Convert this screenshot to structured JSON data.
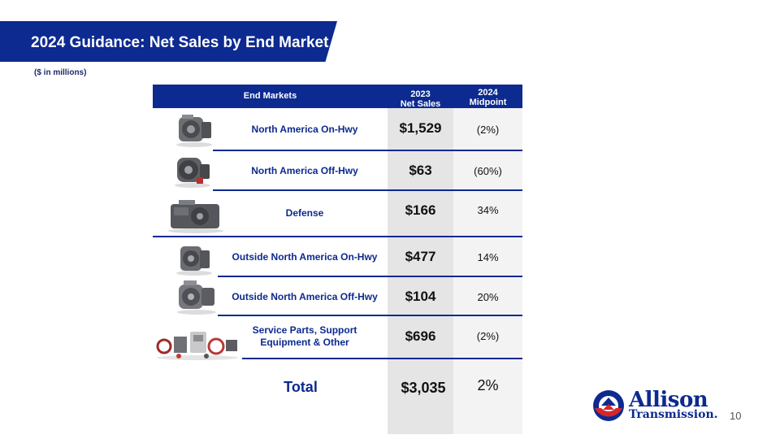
{
  "header": {
    "title": "2024 Guidance: Net Sales by End Market",
    "subtitle": "($ in millions)"
  },
  "table": {
    "columns": {
      "markets": "End Markets",
      "sales_line1": "2023",
      "sales_line2": "Net Sales",
      "mid_line1": "2024",
      "mid_line2": "Midpoint"
    },
    "rows": [
      {
        "market": "North America On-Hwy",
        "sales": "$1,529",
        "midpoint": "(2%)",
        "image": "transmission-image"
      },
      {
        "market": "North America Off-Hwy",
        "sales": "$63",
        "midpoint": "(60%)",
        "image": "transmission-image"
      },
      {
        "market": "Defense",
        "sales": "$166",
        "midpoint": "34%",
        "image": "defense-transmission-image"
      },
      {
        "market": "Outside North America On-Hwy",
        "sales": "$477",
        "midpoint": "14%",
        "image": "transmission-image"
      },
      {
        "market": "Outside North America Off-Hwy",
        "sales": "$104",
        "midpoint": "20%",
        "image": "transmission-image"
      },
      {
        "market_line1": "Service Parts, Support",
        "market_line2": "Equipment & Other",
        "sales": "$696",
        "midpoint": "(2%)",
        "image": "service-parts-image"
      }
    ],
    "total": {
      "label": "Total",
      "sales": "$3,035",
      "midpoint": "2%"
    }
  },
  "brand": {
    "name": "Allison",
    "sub": "Transmission.",
    "logo_icon": "allison-logo-icon",
    "primary_color": "#0c2a8f",
    "accent_color": "#d6262b"
  },
  "page_number": "10"
}
